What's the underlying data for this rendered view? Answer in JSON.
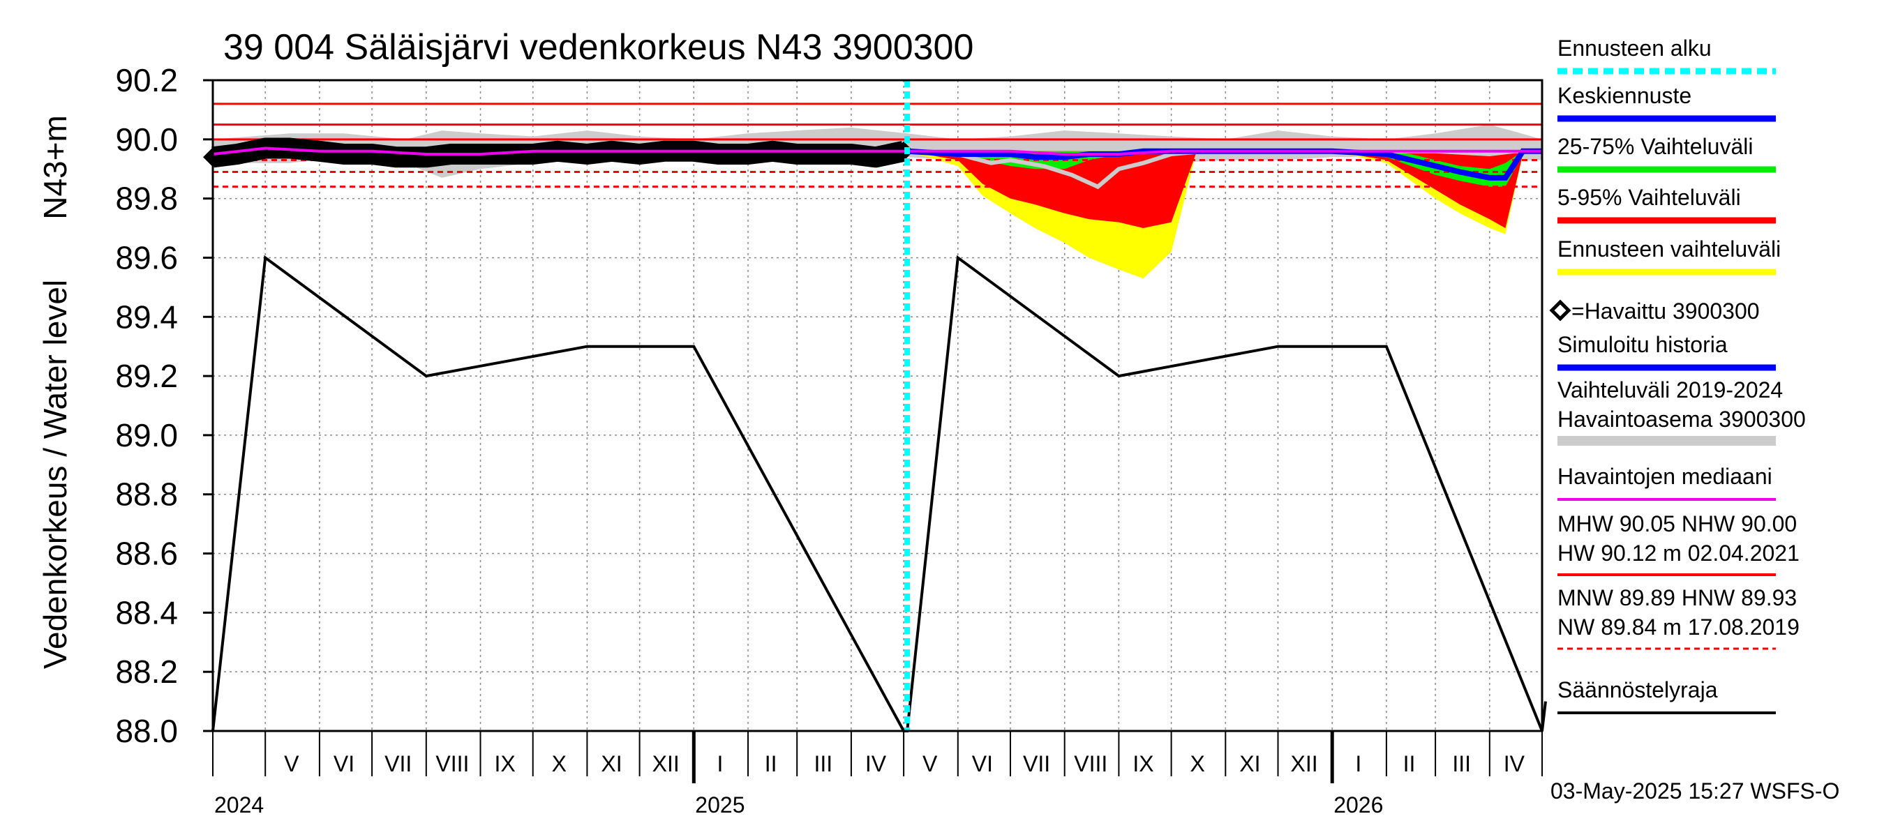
{
  "chart_data": {
    "type": "line",
    "title": "39 004 Säläisjärvi vedenkorkeus N43 3900300",
    "ylabel_top": "N43+m",
    "ylabel": "Vedenkorkeus / Water level",
    "ylim": [
      88.0,
      90.2
    ],
    "yticks": [
      "88.0",
      "88.2",
      "88.4",
      "88.6",
      "88.8",
      "89.0",
      "89.2",
      "89.4",
      "89.6",
      "89.8",
      "90.0",
      "90.2"
    ],
    "ytick_values": [
      88.0,
      88.2,
      88.4,
      88.6,
      88.8,
      89.0,
      89.2,
      89.4,
      89.6,
      89.8,
      90.0,
      90.2
    ],
    "x_range": [
      "2024-04-01",
      "2026-05-01"
    ],
    "forecast_start": "2025-05-03",
    "months": [
      {
        "label": "V",
        "date": "2024-05-16"
      },
      {
        "label": "VI",
        "date": "2024-06-15"
      },
      {
        "label": "VII",
        "date": "2024-07-16"
      },
      {
        "label": "VIII",
        "date": "2024-08-16"
      },
      {
        "label": "IX",
        "date": "2024-09-15"
      },
      {
        "label": "X",
        "date": "2024-10-16"
      },
      {
        "label": "XI",
        "date": "2024-11-15"
      },
      {
        "label": "XII",
        "date": "2024-12-16"
      },
      {
        "label": "I",
        "date": "2025-01-16"
      },
      {
        "label": "II",
        "date": "2025-02-14"
      },
      {
        "label": "III",
        "date": "2025-03-16"
      },
      {
        "label": "IV",
        "date": "2025-04-15"
      },
      {
        "label": "V",
        "date": "2025-05-16"
      },
      {
        "label": "VI",
        "date": "2025-06-15"
      },
      {
        "label": "VII",
        "date": "2025-07-16"
      },
      {
        "label": "VIII",
        "date": "2025-08-16"
      },
      {
        "label": "IX",
        "date": "2025-09-15"
      },
      {
        "label": "X",
        "date": "2025-10-16"
      },
      {
        "label": "XI",
        "date": "2025-11-15"
      },
      {
        "label": "XII",
        "date": "2025-12-16"
      },
      {
        "label": "I",
        "date": "2026-01-16"
      },
      {
        "label": "II",
        "date": "2026-02-14"
      },
      {
        "label": "III",
        "date": "2026-03-16"
      },
      {
        "label": "IV",
        "date": "2026-04-15"
      }
    ],
    "month_boundaries": [
      "2024-05-01",
      "2024-06-01",
      "2024-07-01",
      "2024-08-01",
      "2024-09-01",
      "2024-10-01",
      "2024-11-01",
      "2024-12-01",
      "2025-01-01",
      "2025-02-01",
      "2025-03-01",
      "2025-04-01",
      "2025-05-01",
      "2025-06-01",
      "2025-07-01",
      "2025-08-01",
      "2025-09-01",
      "2025-10-01",
      "2025-11-01",
      "2025-12-01",
      "2026-01-01",
      "2026-02-01",
      "2026-03-01",
      "2026-04-01"
    ],
    "years": [
      {
        "label": "2024",
        "date": "2024-04-01",
        "tick": "2024-04-01"
      },
      {
        "label": "2025",
        "date": "2025-01-01",
        "tick": "2025-01-01"
      },
      {
        "label": "2026",
        "date": "2026-01-01",
        "tick": "2026-01-01"
      }
    ],
    "reference_lines": [
      {
        "name": "HW",
        "value": 90.12,
        "color": "#ff0000",
        "style": "solid"
      },
      {
        "name": "MHW",
        "value": 90.05,
        "color": "#ff0000",
        "style": "solid"
      },
      {
        "name": "NHW",
        "value": 90.0,
        "color": "#ff0000",
        "style": "solid"
      },
      {
        "name": "HNW",
        "value": 89.93,
        "color": "#ff0000",
        "style": "dashed"
      },
      {
        "name": "MNW",
        "value": 89.89,
        "color": "#ff0000",
        "style": "dashed"
      },
      {
        "name": "NW",
        "value": 89.84,
        "color": "#ff0000",
        "style": "dashed"
      }
    ],
    "regulation_limit": {
      "color": "#000000",
      "x": [
        "2024-04-01",
        "2024-05-01",
        "2024-08-01",
        "2024-11-01",
        "2025-01-01",
        "2025-05-01",
        "2025-05-03",
        "2025-06-01",
        "2025-09-01",
        "2025-12-01",
        "2026-02-01",
        "2026-05-01",
        "2026-05-03"
      ],
      "y": [
        88.0,
        89.6,
        89.2,
        89.3,
        89.3,
        88.0,
        88.0,
        89.6,
        89.2,
        89.3,
        89.3,
        88.0,
        88.1
      ]
    },
    "history_range": {
      "color": "#cccccc",
      "x": [
        "2024-04-01",
        "2024-05-15",
        "2024-06-15",
        "2024-07-20",
        "2024-08-10",
        "2024-09-01",
        "2024-10-01",
        "2024-11-01",
        "2024-12-01",
        "2025-01-01",
        "2025-02-01",
        "2025-03-01",
        "2025-04-01",
        "2025-05-03",
        "2025-06-01",
        "2025-07-01",
        "2025-08-01",
        "2025-09-01",
        "2025-10-01",
        "2025-11-01",
        "2025-12-01",
        "2026-01-01",
        "2026-02-01",
        "2026-03-01",
        "2026-04-01",
        "2026-05-01"
      ],
      "upper": [
        90.0,
        90.02,
        90.02,
        90.0,
        90.03,
        90.02,
        90.01,
        90.03,
        90.01,
        90.0,
        90.02,
        90.03,
        90.04,
        90.02,
        90.0,
        90.01,
        90.03,
        90.02,
        90.01,
        90.0,
        90.03,
        90.01,
        90.0,
        90.02,
        90.05,
        90.0
      ],
      "lower": [
        89.92,
        89.92,
        89.94,
        89.92,
        89.87,
        89.9,
        89.92,
        89.93,
        89.93,
        89.94,
        89.94,
        89.94,
        89.93,
        89.94,
        89.93,
        89.92,
        89.88,
        89.91,
        89.92,
        89.93,
        89.93,
        89.94,
        89.94,
        89.94,
        89.93,
        89.93
      ]
    },
    "observed": {
      "name": "=Havaittu 3900300",
      "x": [
        "2024-04-01",
        "2024-04-15",
        "2024-05-01",
        "2024-05-15",
        "2024-06-01",
        "2024-06-15",
        "2024-07-01",
        "2024-07-15",
        "2024-08-01",
        "2024-08-15",
        "2024-09-01",
        "2024-09-15",
        "2024-10-01",
        "2024-10-15",
        "2024-11-01",
        "2024-11-15",
        "2024-12-01",
        "2024-12-15",
        "2025-01-01",
        "2025-01-15",
        "2025-02-01",
        "2025-02-15",
        "2025-03-01",
        "2025-03-15",
        "2025-04-01",
        "2025-04-15",
        "2025-05-01"
      ],
      "y": [
        89.94,
        89.95,
        89.97,
        89.97,
        89.96,
        89.95,
        89.95,
        89.94,
        89.94,
        89.95,
        89.95,
        89.95,
        89.95,
        89.96,
        89.95,
        89.96,
        89.95,
        89.96,
        89.96,
        89.95,
        89.95,
        89.96,
        89.95,
        89.95,
        89.95,
        89.94,
        89.96
      ]
    },
    "median": {
      "name": "Havaintojen mediaani",
      "color": "#ee00ee",
      "x": [
        "2024-04-01",
        "2024-05-01",
        "2024-06-01",
        "2024-07-01",
        "2024-08-01",
        "2024-09-01",
        "2024-10-01",
        "2024-11-01",
        "2024-12-01",
        "2025-01-01",
        "2025-02-01",
        "2025-03-01",
        "2025-04-01",
        "2025-05-01",
        "2025-06-01",
        "2025-07-01",
        "2025-08-01",
        "2025-09-01",
        "2025-10-01",
        "2025-11-01",
        "2025-12-01",
        "2026-01-01",
        "2026-02-01",
        "2026-03-01",
        "2026-04-01",
        "2026-05-01"
      ],
      "y": [
        89.95,
        89.97,
        89.96,
        89.96,
        89.95,
        89.95,
        89.96,
        89.96,
        89.96,
        89.96,
        89.96,
        89.96,
        89.96,
        89.96,
        89.96,
        89.96,
        89.95,
        89.95,
        89.96,
        89.96,
        89.96,
        89.96,
        89.96,
        89.96,
        89.96,
        89.96
      ]
    },
    "forecast_x": [
      "2025-05-03",
      "2025-06-01",
      "2025-06-15",
      "2025-07-01",
      "2025-07-15",
      "2025-08-01",
      "2025-08-15",
      "2025-09-01",
      "2025-09-15",
      "2025-10-01",
      "2025-10-15",
      "2025-11-01",
      "2025-12-01",
      "2026-01-01",
      "2026-02-01",
      "2026-02-15",
      "2026-03-01",
      "2026-03-15",
      "2026-04-01",
      "2026-04-10",
      "2026-04-20",
      "2026-05-01"
    ],
    "forecast_full": {
      "color": "#ffff00",
      "upper": [
        89.96,
        89.96,
        89.96,
        89.96,
        89.96,
        89.96,
        89.96,
        89.96,
        89.96,
        89.96,
        89.96,
        89.96,
        89.96,
        89.96,
        89.96,
        89.96,
        89.96,
        89.96,
        89.96,
        89.96,
        89.96,
        89.96
      ],
      "lower": [
        89.96,
        89.91,
        89.81,
        89.75,
        89.7,
        89.65,
        89.6,
        89.56,
        89.53,
        89.62,
        89.95,
        89.96,
        89.96,
        89.96,
        89.92,
        89.86,
        89.8,
        89.75,
        89.7,
        89.68,
        89.95,
        89.96
      ]
    },
    "forecast_5_95": {
      "color": "#ff0000",
      "upper": [
        89.96,
        89.96,
        89.96,
        89.96,
        89.96,
        89.96,
        89.96,
        89.96,
        89.96,
        89.96,
        89.96,
        89.96,
        89.96,
        89.96,
        89.96,
        89.96,
        89.96,
        89.96,
        89.96,
        89.96,
        89.96,
        89.96
      ],
      "lower": [
        89.96,
        89.93,
        89.85,
        89.8,
        89.78,
        89.75,
        89.73,
        89.72,
        89.7,
        89.72,
        89.95,
        89.96,
        89.96,
        89.96,
        89.93,
        89.88,
        89.83,
        89.78,
        89.73,
        89.7,
        89.95,
        89.96
      ]
    },
    "forecast_25_75": {
      "color": "#00ee00",
      "upper": [
        89.96,
        89.96,
        89.96,
        89.96,
        89.96,
        89.96,
        89.96,
        89.96,
        89.96,
        89.96,
        89.96,
        89.96,
        89.96,
        89.96,
        89.96,
        89.95,
        89.93,
        89.91,
        89.9,
        89.92,
        89.96,
        89.96
      ],
      "lower": [
        89.96,
        89.95,
        89.93,
        89.91,
        89.9,
        89.9,
        89.93,
        89.95,
        89.96,
        89.96,
        89.96,
        89.96,
        89.96,
        89.96,
        89.94,
        89.91,
        89.88,
        89.86,
        89.84,
        89.84,
        89.95,
        89.96
      ]
    },
    "forecast_mean": {
      "name": "Keskiennuste",
      "color": "#0000ff",
      "y": [
        89.96,
        89.95,
        89.95,
        89.95,
        89.94,
        89.94,
        89.95,
        89.95,
        89.96,
        89.96,
        89.96,
        89.96,
        89.96,
        89.96,
        89.95,
        89.93,
        89.91,
        89.89,
        89.87,
        89.87,
        89.96,
        89.96
      ]
    },
    "forecast_history_line": {
      "color": "#cccccc",
      "x": [
        "2025-05-03",
        "2025-06-01",
        "2025-06-20",
        "2025-07-01",
        "2025-07-20",
        "2025-08-05",
        "2025-08-20",
        "2025-09-01",
        "2025-09-15",
        "2025-10-01",
        "2025-10-20",
        "2025-11-15",
        "2026-01-01",
        "2026-02-01",
        "2026-03-01",
        "2026-04-01",
        "2026-04-15",
        "2026-05-01"
      ],
      "y": [
        89.96,
        89.95,
        89.92,
        89.93,
        89.91,
        89.88,
        89.84,
        89.9,
        89.92,
        89.95,
        89.96,
        89.96,
        89.96,
        89.96,
        89.96,
        89.95,
        89.96,
        89.96
      ]
    },
    "legend": [
      {
        "label": "Ennusteen alku",
        "color": "#00ffff",
        "style": "dotted"
      },
      {
        "label": "Keskiennuste",
        "color": "#0000ff",
        "style": "solid"
      },
      {
        "label": "25-75% Vaihteluväli",
        "color": "#00ee00",
        "style": "solid"
      },
      {
        "label": "5-95% Vaihteluväli",
        "color": "#ff0000",
        "style": "solid"
      },
      {
        "label": "Ennusteen vaihteluväli",
        "color": "#ffff00",
        "style": "solid"
      },
      {
        "label": "=Havaittu 3900300",
        "color": "#000000",
        "style": "marker"
      },
      {
        "label": "Simuloitu historia",
        "color": "#0000ff",
        "style": "solid"
      },
      {
        "label": "Vaihteluväli 2019-2024",
        "label2": " Havaintoasema 3900300",
        "color": "#cccccc",
        "style": "solid"
      },
      {
        "label": "Havaintojen mediaani",
        "color": "#ee00ee",
        "style": "solid"
      },
      {
        "label": "MHW  90.05 NHW  90.00",
        "label2": "HW  90.12 m 02.04.2021",
        "color": "#ff0000",
        "style": "solid"
      },
      {
        "label": "MNW  89.89 HNW  89.93",
        "label2": "NW  89.84 m 17.08.2019",
        "color": "#ff0000",
        "style": "dashed"
      },
      {
        "label": "Säännöstelyraja",
        "color": "#000000",
        "style": "solid"
      }
    ],
    "timestamp": "03-May-2025 15:27 WSFS-O",
    "grid": true
  }
}
